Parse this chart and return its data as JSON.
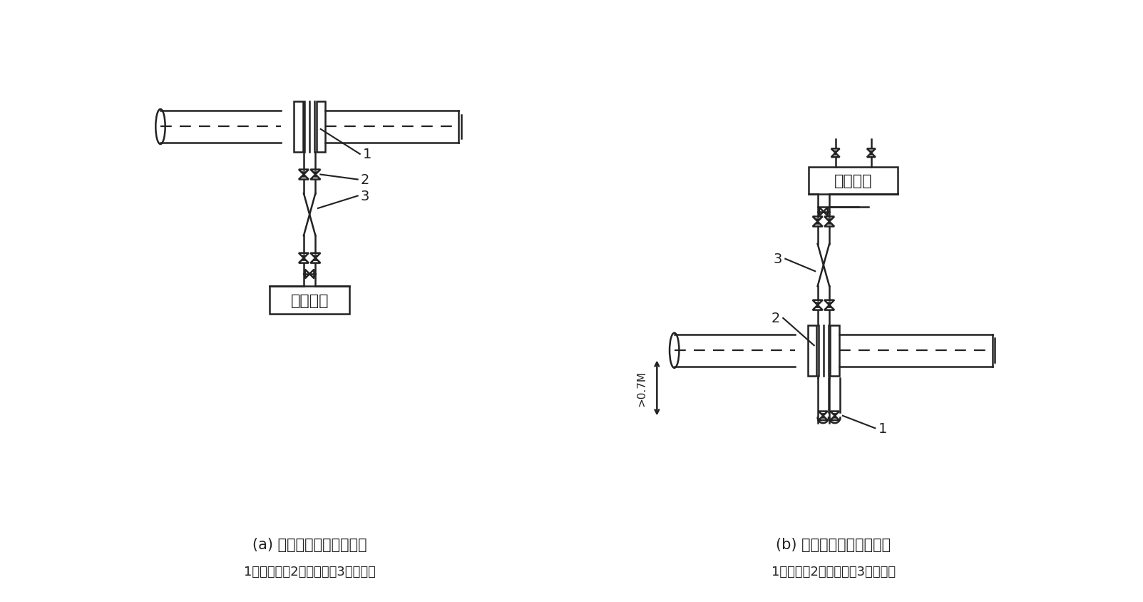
{
  "bg_color": "#ffffff",
  "line_color": "#222222",
  "title_a": "(a) 仪表装在节流装置下方",
  "title_b": "(b) 仪表装在节流装置上方",
  "legend_a": "1、节流装置2、截止钢铁3、导压管",
  "legend_b": "1、截止阀2、节流装置3、导压管",
  "instrument_label": "差压仪表",
  "dim_label": ">0.7M"
}
